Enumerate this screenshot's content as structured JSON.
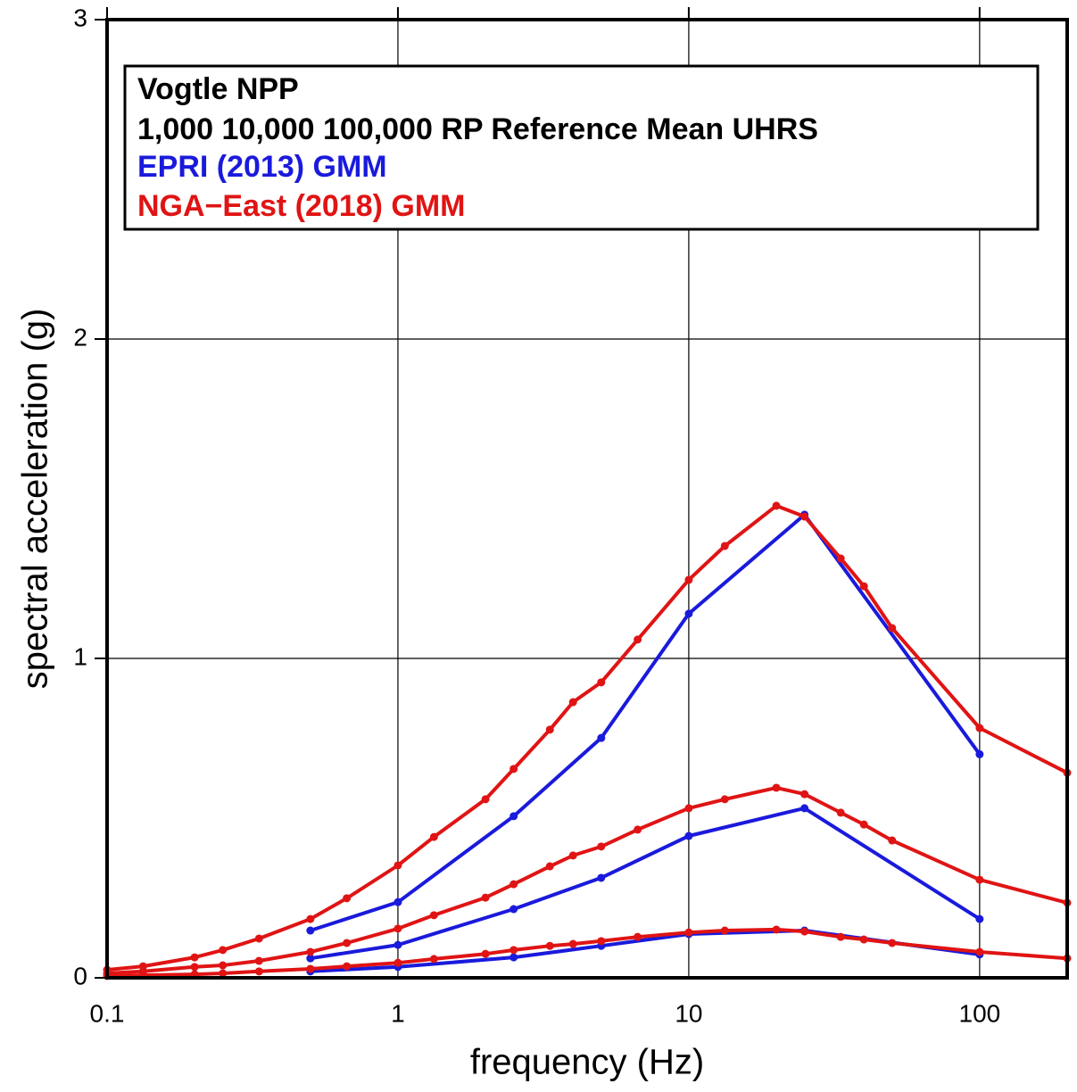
{
  "chart_data": {
    "type": "line",
    "title": "Vogtle NPP",
    "subtitle": "1,000 10,000 100,000 RP Reference Mean UHRS",
    "x_label": "frequency (Hz)",
    "y_label": "spectral acceleration (g)",
    "x_scale": "log",
    "xlim": [
      0.1,
      200
    ],
    "ylim": [
      0,
      3
    ],
    "xticks": [
      0.1,
      1,
      10,
      100
    ],
    "yticks": [
      0,
      1,
      2,
      3
    ],
    "grid": true,
    "series": [
      {
        "name": "EPRI (2013) GMM",
        "color": "#1a1adc",
        "curves": [
          {
            "x": [
              0.5,
              1,
              2.5,
              5,
              10,
              25,
              100
            ],
            "values": [
              0.148,
              0.237,
              0.506,
              0.751,
              1.14,
              1.45,
              0.7
            ]
          },
          {
            "x": [
              0.5,
              1,
              2.5,
              5,
              10,
              25,
              100
            ],
            "values": [
              0.061,
              0.103,
              0.215,
              0.313,
              0.444,
              0.531,
              0.184
            ]
          },
          {
            "x": [
              0.5,
              1,
              2.5,
              5,
              10,
              25,
              100
            ],
            "values": [
              0.02,
              0.034,
              0.064,
              0.1,
              0.137,
              0.148,
              0.073
            ]
          }
        ]
      },
      {
        "name": "NGA−East (2018) GMM",
        "color": "#e01414",
        "curves": [
          {
            "x": [
              0.1,
              0.133,
              0.2,
              0.25,
              0.333,
              0.5,
              0.667,
              1,
              1.33,
              2,
              2.5,
              3.33,
              4,
              5,
              6.67,
              10,
              13.3,
              20,
              25,
              33.3,
              40,
              50,
              100,
              200
            ],
            "values": [
              0.025,
              0.036,
              0.064,
              0.087,
              0.123,
              0.184,
              0.249,
              0.352,
              0.441,
              0.559,
              0.654,
              0.777,
              0.863,
              0.925,
              1.059,
              1.246,
              1.352,
              1.478,
              1.444,
              1.313,
              1.226,
              1.095,
              0.782,
              0.642
            ]
          },
          {
            "x": [
              0.1,
              0.133,
              0.2,
              0.25,
              0.333,
              0.5,
              0.667,
              1,
              1.33,
              2,
              2.5,
              3.33,
              4,
              5,
              6.67,
              10,
              13.3,
              20,
              25,
              33.3,
              40,
              50,
              100,
              200
            ],
            "values": [
              0.014,
              0.02,
              0.034,
              0.039,
              0.053,
              0.081,
              0.109,
              0.154,
              0.196,
              0.251,
              0.293,
              0.349,
              0.383,
              0.411,
              0.464,
              0.531,
              0.559,
              0.595,
              0.575,
              0.517,
              0.48,
              0.43,
              0.307,
              0.235
            ]
          },
          {
            "x": [
              0.1,
              0.133,
              0.2,
              0.25,
              0.333,
              0.5,
              0.667,
              1,
              1.33,
              2,
              2.5,
              3.33,
              4,
              5,
              6.67,
              10,
              13.3,
              20,
              25,
              33.3,
              40,
              50,
              100,
              200
            ],
            "values": [
              0.006,
              0.008,
              0.011,
              0.014,
              0.02,
              0.028,
              0.036,
              0.047,
              0.059,
              0.075,
              0.087,
              0.1,
              0.106,
              0.115,
              0.128,
              0.142,
              0.148,
              0.151,
              0.145,
              0.128,
              0.12,
              0.109,
              0.081,
              0.061
            ]
          }
        ]
      }
    ]
  }
}
